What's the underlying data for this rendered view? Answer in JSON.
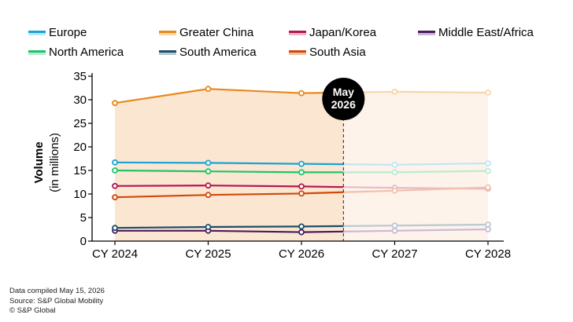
{
  "chart_data": {
    "type": "line",
    "categories": [
      "CY 2024",
      "CY 2025",
      "CY 2026",
      "CY 2027",
      "CY 2028"
    ],
    "ylim": [
      0,
      35
    ],
    "yticks": [
      0,
      5,
      10,
      15,
      20,
      25,
      30,
      35
    ],
    "ylabel": "Volume",
    "ylabel_sub": "(in millions)",
    "grid": false,
    "legend_position": "top",
    "cutoff": {
      "label_line1": "May",
      "label_line2": "2026",
      "x": 2.45
    },
    "shaded_series": "Greater China",
    "series": [
      {
        "name": "Europe",
        "color": "#1aa3d4",
        "light": "#bfe6f4",
        "values": [
          16.7,
          16.6,
          16.4,
          16.2,
          16.5
        ]
      },
      {
        "name": "Greater China",
        "color": "#e8891b",
        "light": "#f8d5ab",
        "values": [
          29.3,
          32.3,
          31.4,
          31.7,
          31.5
        ]
      },
      {
        "name": "Japan/Korea",
        "color": "#b5174f",
        "light": "#eab8ca",
        "values": [
          11.7,
          11.8,
          11.6,
          11.3,
          11.1
        ]
      },
      {
        "name": "Middle East/Africa",
        "color": "#4a1b5e",
        "light": "#cbb8d5",
        "values": [
          2.2,
          2.2,
          1.9,
          2.2,
          2.5
        ]
      },
      {
        "name": "North America",
        "color": "#1fc46a",
        "light": "#b8ecd0",
        "values": [
          15.0,
          14.8,
          14.6,
          14.6,
          14.9
        ]
      },
      {
        "name": "South America",
        "color": "#1e4e68",
        "light": "#b9c9d2",
        "values": [
          2.8,
          3.0,
          3.1,
          3.3,
          3.5
        ]
      },
      {
        "name": "South Asia",
        "color": "#cf4a0a",
        "light": "#f1c1a8",
        "values": [
          9.3,
          9.8,
          10.1,
          10.7,
          11.4
        ]
      }
    ]
  },
  "footer": {
    "line1": "Data compiled May 15, 2026",
    "line2": "Source: S&P Global Mobility",
    "line3": "© S&P Global"
  }
}
